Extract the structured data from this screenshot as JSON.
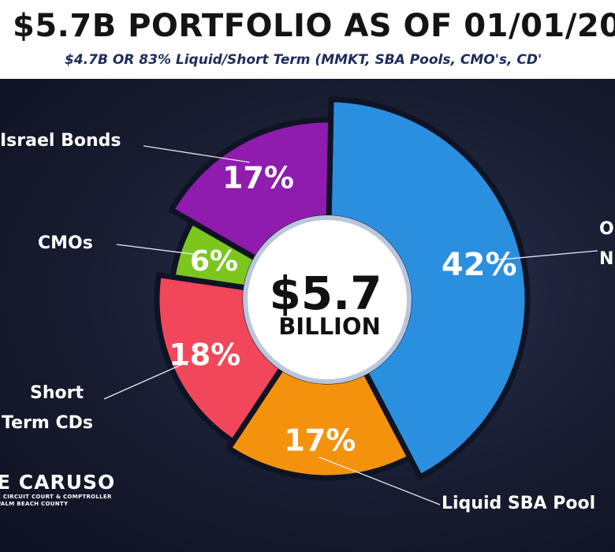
{
  "header": {
    "title": "$5.7B PORTFOLIO AS OF 01/01/20",
    "subtitle": "$4.7B OR 83% Liquid/Short Term (MMKT, SBA Pools, CMO's, CD'"
  },
  "center": {
    "amount": "$5.7",
    "unit": "BILLION"
  },
  "branding": {
    "name": "E CARUSO",
    "line1": "E CIRCUIT COURT & COMPTROLLER",
    "line2": "PALM BEACH COUNTY"
  },
  "chart_data": {
    "type": "pie",
    "donut": true,
    "title": "$5.7B PORTFOLIO AS OF 01/01/20",
    "subtitle": "$4.7B OR 83% Liquid/Short Term (MMKT, SBA Pools, CMO's, CD'",
    "slices": [
      {
        "label": "O... N...",
        "value": 42,
        "text": "42%",
        "color": "#2b8fe0",
        "callout": [
          "O",
          "N"
        ]
      },
      {
        "label": "Liquid SBA Pool",
        "value": 17,
        "text": "17%",
        "color": "#f5920d",
        "callout": [
          "Liquid SBA Pool"
        ]
      },
      {
        "label": "Short Term CDs",
        "value": 18,
        "text": "18%",
        "color": "#f2475a",
        "callout": [
          "Short",
          "Term CDs"
        ]
      },
      {
        "label": "CMOs",
        "value": 6,
        "text": "6%",
        "color": "#7cc61e",
        "callout": [
          "CMOs"
        ]
      },
      {
        "label": "Israel Bonds",
        "value": 17,
        "text": "17%",
        "color": "#8f1cae",
        "callout": [
          "Israel Bonds"
        ]
      }
    ]
  }
}
